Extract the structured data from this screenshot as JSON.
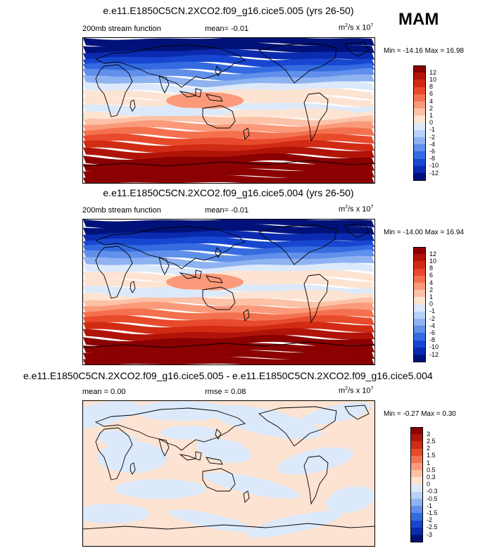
{
  "season": "MAM",
  "colors": {
    "positive": [
      "#fde3d2",
      "#fcc1a6",
      "#fa9a7a",
      "#f4714f",
      "#e84a2c",
      "#d12b14",
      "#b01409",
      "#8b0000"
    ],
    "negative": [
      "#dce9fb",
      "#b9d1f7",
      "#8fb3f1",
      "#6090ea",
      "#356be0",
      "#1747d1",
      "#0a2bb0",
      "#00127a"
    ],
    "neutral": "#ffffff"
  },
  "panels": [
    {
      "title": "e.e11.E1850C5CN.2XCO2.f09_g16.cice5.005 (yrs 26-50)",
      "left_label": "200mb stream function",
      "stat_label": "mean=  -0.01",
      "units": "m",
      "units_exp1": "2",
      "units_mid": "/s x 10",
      "units_exp2": "7",
      "minmax": "Min = -14.16 Max =  16.98",
      "legend_labels": [
        "12",
        "10",
        "8",
        "6",
        "4",
        "2",
        "1",
        "0",
        "-1",
        "-2",
        "-4",
        "-6",
        "-8",
        "-10",
        "-12"
      ]
    },
    {
      "title": "e.e11.E1850C5CN.2XCO2.f09_g16.cice5.004 (yrs 26-50)",
      "left_label": "200mb stream function",
      "stat_label": "mean=  -0.01",
      "units": "m",
      "units_exp1": "2",
      "units_mid": "/s x 10",
      "units_exp2": "7",
      "minmax": "Min = -14.00 Max =  16.94",
      "legend_labels": [
        "12",
        "10",
        "8",
        "6",
        "4",
        "2",
        "1",
        "0",
        "-1",
        "-2",
        "-4",
        "-6",
        "-8",
        "-10",
        "-12"
      ]
    },
    {
      "title": "e.e11.E1850C5CN.2XCO2.f09_g16.cice5.005 - e.e11.E1850C5CN.2XCO2.f09_g16.cice5.004",
      "left_label": "mean =   0.00",
      "stat_label": "rmse =   0.08",
      "units": "m",
      "units_exp1": "2",
      "units_mid": "/s x 10",
      "units_exp2": "7",
      "minmax": "Min =  -0.27 Max =   0.30",
      "legend_labels": [
        "3",
        "2.5",
        "2",
        "1.5",
        "1",
        "0.5",
        "0.3",
        "0",
        "-0.3",
        "-0.5",
        "-1",
        "-1.5",
        "-2",
        "-2.5",
        "-3"
      ]
    }
  ],
  "chart_data": [
    {
      "type": "heatmap",
      "title": "e.e11.E1850C5CN.2XCO2.f09_g16.cice5.005 (yrs 26-50)",
      "field": "200mb stream function",
      "units": "m2/s x 10^7",
      "mean": -0.01,
      "min": -14.16,
      "max": 16.98,
      "contour_levels": [
        -12,
        -10,
        -8,
        -6,
        -4,
        -2,
        -1,
        0,
        1,
        2,
        4,
        6,
        8,
        10,
        12
      ],
      "zonal_profile_from_north_to_south": [
        -13,
        -12,
        -10,
        -8,
        -6,
        -4,
        -2,
        -0.5,
        0.5,
        0.5,
        -0.5,
        0.5,
        1.5,
        3,
        5,
        7,
        9,
        11,
        13,
        14,
        15,
        16
      ]
    },
    {
      "type": "heatmap",
      "title": "e.e11.E1850C5CN.2XCO2.f09_g16.cice5.004 (yrs 26-50)",
      "field": "200mb stream function",
      "units": "m2/s x 10^7",
      "mean": -0.01,
      "min": -14.0,
      "max": 16.94,
      "contour_levels": [
        -12,
        -10,
        -8,
        -6,
        -4,
        -2,
        -1,
        0,
        1,
        2,
        4,
        6,
        8,
        10,
        12
      ],
      "zonal_profile_from_north_to_south": [
        -13,
        -12,
        -10,
        -8,
        -6,
        -4,
        -2,
        -0.5,
        0.5,
        0.5,
        -0.5,
        0.5,
        1.5,
        3,
        5,
        7,
        9,
        11,
        13,
        14,
        15,
        16
      ]
    },
    {
      "type": "heatmap",
      "title": "e.e11.E1850C5CN.2XCO2.f09_g16.cice5.005 - e.e11.E1850C5CN.2XCO2.f09_g16.cice5.004",
      "units": "m2/s x 10^7",
      "mean": 0.0,
      "rmse": 0.08,
      "min": -0.27,
      "max": 0.3,
      "contour_levels": [
        -3,
        -2.5,
        -2,
        -1.5,
        -1,
        -0.5,
        -0.3,
        0,
        0.3,
        0.5,
        1,
        1.5,
        2,
        2.5,
        3
      ]
    }
  ]
}
